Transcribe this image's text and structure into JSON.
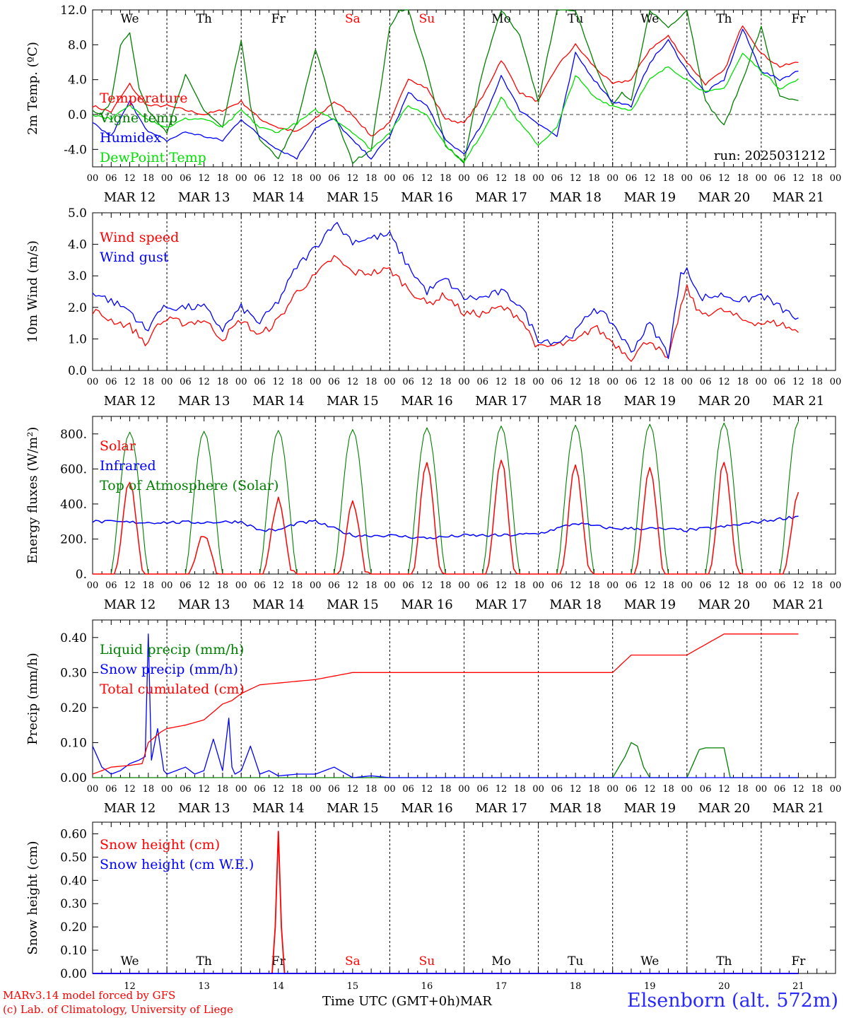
{
  "footer": {
    "credit_line1": "MARv3.14 model forced by GFS",
    "credit_line2": "(c) Lab. of Climatology, University of Liege",
    "xaxis_label": "Time UTC (GMT+0h)",
    "month": "MAR",
    "station": "Elsenborn (alt. 572m)"
  },
  "colors": {
    "red": "#ff0000",
    "green": "#008000",
    "blue": "#0000ff",
    "lightgreen": "#00e000",
    "day_weekend": "#ff0000"
  },
  "days": [
    "We",
    "Th",
    "Fr",
    "Sa",
    "Su",
    "Mo",
    "Tu",
    "We",
    "Th",
    "Fr"
  ],
  "weekend_days": [
    "Sa",
    "Su"
  ],
  "date_labels": [
    "MAR 12",
    "MAR 13",
    "MAR 14",
    "MAR 15",
    "MAR 16",
    "MAR 17",
    "MAR 18",
    "MAR 19",
    "MAR 20",
    "MAR 21"
  ],
  "hour_ticks": [
    "00",
    "06",
    "12",
    "18"
  ],
  "bottom_day_numbers": [
    "12",
    "13",
    "14",
    "15",
    "16",
    "17",
    "18",
    "19",
    "20",
    "21"
  ],
  "chart_data": [
    {
      "type": "line",
      "id": "temperature",
      "ylabel": "2m Temp. (ºC)",
      "ylim": [
        -6,
        12
      ],
      "yticks": [
        "-4.0",
        "0.0",
        "4.0",
        "8.0",
        "12.0"
      ],
      "ytick_values": [
        -4,
        0,
        4,
        8,
        12
      ],
      "annotation": "run: 2025031212",
      "x_unit": "hours since MAR 12 00 UTC",
      "series": [
        {
          "name": "Temperature",
          "color": "#ff0000",
          "x": [
            0,
            6,
            12,
            15,
            18,
            24,
            30,
            36,
            42,
            48,
            54,
            60,
            66,
            72,
            78,
            84,
            90,
            96,
            102,
            108,
            114,
            120,
            126,
            132,
            138,
            144,
            150,
            156,
            162,
            168,
            174,
            180,
            186,
            192,
            198,
            204,
            210,
            216,
            222,
            228
          ],
          "values": [
            1.0,
            0.3,
            3.5,
            2.0,
            1.0,
            1.0,
            0.5,
            0.0,
            0.5,
            1.5,
            -0.5,
            -1.5,
            -2.0,
            -0.5,
            1.5,
            0.0,
            -2.5,
            -1.0,
            4.2,
            3.0,
            -0.5,
            -1.0,
            2.0,
            6.3,
            2.5,
            1.5,
            5.5,
            8.0,
            5.5,
            3.5,
            4.0,
            7.5,
            9.0,
            6.0,
            3.5,
            5.0,
            10.3,
            7.0,
            5.5,
            6.0
          ]
        },
        {
          "name": "Vigne temp",
          "color": "#008000",
          "x": [
            0,
            3,
            6,
            9,
            12,
            15,
            18,
            24,
            30,
            36,
            42,
            48,
            51,
            54,
            60,
            66,
            72,
            75,
            78,
            84,
            90,
            96,
            99,
            102,
            108,
            114,
            120,
            123,
            126,
            132,
            138,
            144,
            150,
            156,
            162,
            168,
            171,
            174,
            180,
            186,
            192,
            198,
            204,
            210,
            216,
            222,
            228
          ],
          "values": [
            0.5,
            0.0,
            1.5,
            8.0,
            9.5,
            3.0,
            0.5,
            -2.0,
            4.5,
            0.5,
            -1.5,
            8.5,
            1.0,
            -3.0,
            -5.0,
            -1.0,
            7.5,
            4.0,
            0.0,
            -5.5,
            -4.0,
            10.0,
            12.0,
            12.0,
            5.0,
            -3.5,
            -5.5,
            0.0,
            5.0,
            12.0,
            9.0,
            1.5,
            12.0,
            12.0,
            6.0,
            1.0,
            2.5,
            1.5,
            12.0,
            10.0,
            12.0,
            1.5,
            -1.3,
            4.0,
            10.0,
            2.0,
            1.5
          ]
        },
        {
          "name": "Humidex",
          "color": "#0000ff",
          "x": [
            0,
            6,
            12,
            18,
            24,
            30,
            36,
            42,
            48,
            54,
            60,
            66,
            72,
            78,
            84,
            90,
            96,
            102,
            108,
            114,
            120,
            126,
            132,
            138,
            144,
            150,
            156,
            162,
            168,
            174,
            180,
            186,
            192,
            198,
            204,
            210,
            216,
            222,
            228
          ],
          "values": [
            -1.0,
            -2.5,
            1.5,
            -2.0,
            -3.0,
            -2.0,
            -2.5,
            -3.0,
            -0.5,
            -2.5,
            -4.0,
            -5.0,
            -1.5,
            -0.5,
            -3.0,
            -5.0,
            -2.5,
            2.5,
            1.0,
            -3.0,
            -4.5,
            -1.0,
            4.5,
            0.5,
            -1.0,
            -2.5,
            7.0,
            4.0,
            1.5,
            1.0,
            6.0,
            8.5,
            5.0,
            2.5,
            4.0,
            9.8,
            5.0,
            4.0,
            5.0
          ]
        },
        {
          "name": "DewPoint Temp",
          "color": "#00e000",
          "x": [
            0,
            6,
            12,
            18,
            24,
            30,
            36,
            42,
            48,
            54,
            60,
            66,
            72,
            78,
            84,
            90,
            96,
            102,
            108,
            114,
            120,
            126,
            132,
            138,
            144,
            150,
            156,
            162,
            168,
            174,
            180,
            186,
            192,
            198,
            204,
            210,
            216,
            222,
            228
          ],
          "values": [
            0.0,
            -0.5,
            1.0,
            -0.5,
            -1.5,
            -0.5,
            -0.5,
            -1.5,
            0.5,
            -1.5,
            -2.0,
            -1.0,
            0.5,
            -0.5,
            -2.0,
            -4.0,
            -2.0,
            1.0,
            0.0,
            -3.5,
            -5.5,
            -2.0,
            2.0,
            -1.0,
            -3.5,
            -1.5,
            4.5,
            2.0,
            1.0,
            0.5,
            4.0,
            5.5,
            4.0,
            2.5,
            3.0,
            7.0,
            5.0,
            3.0,
            4.0
          ]
        }
      ]
    },
    {
      "type": "line",
      "id": "wind",
      "ylabel": "10m Wind (m/s)",
      "ylim": [
        0,
        5
      ],
      "yticks": [
        "0.0",
        "1.0",
        "2.0",
        "3.0",
        "4.0",
        "5.0"
      ],
      "ytick_values": [
        0,
        1,
        2,
        3,
        4,
        5
      ],
      "x_unit": "hours since MAR 12 00 UTC",
      "series": [
        {
          "name": "Wind speed",
          "color": "#ff0000",
          "x": [
            0,
            6,
            12,
            18,
            20,
            24,
            30,
            36,
            42,
            48,
            54,
            60,
            66,
            72,
            78,
            84,
            90,
            96,
            102,
            108,
            114,
            120,
            126,
            132,
            138,
            144,
            150,
            156,
            162,
            168,
            174,
            180,
            186,
            190,
            192,
            196,
            204,
            210,
            216,
            222,
            228
          ],
          "values": [
            1.9,
            1.6,
            1.4,
            0.8,
            1.4,
            1.6,
            1.5,
            1.6,
            1.0,
            1.6,
            1.1,
            1.6,
            2.5,
            3.0,
            3.6,
            3.1,
            3.1,
            3.2,
            2.6,
            2.1,
            2.4,
            1.8,
            1.8,
            2.0,
            1.7,
            0.7,
            0.8,
            0.9,
            1.4,
            0.9,
            0.4,
            1.0,
            0.3,
            2.0,
            2.6,
            1.8,
            1.9,
            1.6,
            1.5,
            1.5,
            1.2
          ]
        },
        {
          "name": "Wind gust",
          "color": "#0000ff",
          "x": [
            0,
            6,
            12,
            18,
            20,
            24,
            30,
            36,
            42,
            48,
            54,
            60,
            66,
            72,
            78,
            84,
            90,
            96,
            102,
            108,
            114,
            120,
            126,
            132,
            138,
            144,
            150,
            156,
            162,
            168,
            174,
            180,
            186,
            190,
            192,
            196,
            204,
            210,
            216,
            222,
            228
          ],
          "values": [
            2.5,
            2.2,
            1.9,
            1.2,
            1.8,
            2.0,
            2.0,
            2.0,
            1.3,
            2.0,
            1.5,
            2.2,
            3.3,
            3.9,
            4.7,
            4.1,
            4.2,
            4.3,
            3.3,
            2.5,
            2.9,
            2.3,
            2.3,
            2.5,
            2.1,
            1.0,
            0.9,
            1.2,
            2.0,
            1.5,
            0.6,
            1.5,
            0.5,
            3.0,
            3.3,
            2.3,
            2.4,
            2.2,
            2.4,
            2.0,
            1.6
          ]
        }
      ]
    },
    {
      "type": "line",
      "id": "energy",
      "ylabel": "Energy fluxes (W/m²)",
      "ylim": [
        0,
        900
      ],
      "yticks": [
        "0.",
        "200.",
        "400.",
        "600.",
        "800."
      ],
      "ytick_values": [
        0,
        200,
        400,
        600,
        800
      ],
      "x_unit": "hours since MAR 12 00 UTC",
      "series": [
        {
          "name": "Solar",
          "color": "#ff0000",
          "daily_peak": [
            530,
            220,
            420,
            410,
            650,
            660,
            635,
            620,
            645,
            480
          ]
        },
        {
          "name": "Infrared",
          "color": "#0000ff",
          "x": [
            0,
            12,
            24,
            36,
            48,
            54,
            60,
            66,
            72,
            84,
            96,
            108,
            120,
            132,
            144,
            156,
            168,
            180,
            192,
            204,
            216,
            228
          ],
          "values": [
            300,
            295,
            295,
            295,
            300,
            250,
            250,
            290,
            300,
            220,
            220,
            205,
            220,
            220,
            230,
            290,
            260,
            260,
            250,
            270,
            300,
            330
          ]
        },
        {
          "name": "Top of Atmosphere (Solar)",
          "color": "#008000",
          "daily_peak": [
            810,
            815,
            820,
            825,
            835,
            845,
            850,
            855,
            862,
            870
          ]
        }
      ]
    },
    {
      "type": "line",
      "id": "precip",
      "ylabel": "Precip (mm/h)",
      "ylim": [
        0,
        0.45
      ],
      "yticks": [
        "0.00",
        "0.10",
        "0.20",
        "0.30",
        "0.40"
      ],
      "ytick_values": [
        0,
        0.1,
        0.2,
        0.3,
        0.4
      ],
      "x_unit": "hours since MAR 12 00 UTC",
      "series": [
        {
          "name": "Liquid precip (mm/h)",
          "color": "#008000",
          "x": [
            0,
            168,
            172,
            174,
            176,
            178,
            180,
            192,
            196,
            198,
            204,
            206,
            228
          ],
          "values": [
            0,
            0,
            0.06,
            0.1,
            0.09,
            0.03,
            0,
            0,
            0.08,
            0.085,
            0.085,
            0,
            0
          ]
        },
        {
          "name": "Snow precip (mm/h)",
          "color": "#0000ff",
          "x": [
            0,
            3,
            6,
            9,
            12,
            15,
            17,
            18,
            19,
            21,
            23,
            24,
            27,
            30,
            33,
            36,
            39,
            42,
            44,
            45,
            46,
            48,
            51,
            54,
            57,
            60,
            66,
            72,
            78,
            84,
            90,
            96,
            228
          ],
          "values": [
            0.09,
            0.03,
            0.01,
            0.02,
            0.04,
            0.05,
            0.06,
            0.41,
            0.05,
            0.14,
            0.02,
            0.01,
            0.02,
            0.03,
            0.01,
            0.02,
            0.11,
            0.02,
            0.17,
            0.03,
            0.01,
            0.02,
            0.09,
            0.01,
            0.02,
            0.005,
            0.01,
            0.01,
            0.03,
            0.0,
            0.005,
            0.0,
            0.0
          ]
        },
        {
          "name": "Total cumulated (cm)",
          "color": "#ff0000",
          "x": [
            0,
            6,
            12,
            16,
            18,
            22,
            24,
            30,
            36,
            42,
            45,
            48,
            54,
            60,
            66,
            72,
            84,
            96,
            120,
            168,
            174,
            180,
            192,
            198,
            204,
            228
          ],
          "values": [
            0.01,
            0.03,
            0.035,
            0.04,
            0.1,
            0.13,
            0.14,
            0.15,
            0.165,
            0.21,
            0.22,
            0.24,
            0.265,
            0.27,
            0.275,
            0.28,
            0.3,
            0.3,
            0.3,
            0.3,
            0.35,
            0.35,
            0.35,
            0.38,
            0.41,
            0.41
          ]
        }
      ]
    },
    {
      "type": "line",
      "id": "snow",
      "ylabel": "Snow height (cm)",
      "ylim": [
        0,
        0.65
      ],
      "yticks": [
        "0.00",
        "0.10",
        "0.20",
        "0.30",
        "0.40",
        "0.50",
        "0.60"
      ],
      "ytick_values": [
        0,
        0.1,
        0.2,
        0.3,
        0.4,
        0.5,
        0.6
      ],
      "x_unit": "hours since MAR 12 00 UTC",
      "series": [
        {
          "name": "Snow height (cm)",
          "color": "#ff0000",
          "x": [
            0,
            58,
            59,
            60,
            61,
            62,
            228
          ],
          "values": [
            0,
            0,
            0.2,
            0.61,
            0.2,
            0,
            0
          ]
        },
        {
          "name": "Snow height (cm W.E.)",
          "color": "#0000ff",
          "x": [
            0,
            228
          ],
          "values": [
            0,
            0
          ]
        }
      ]
    }
  ]
}
